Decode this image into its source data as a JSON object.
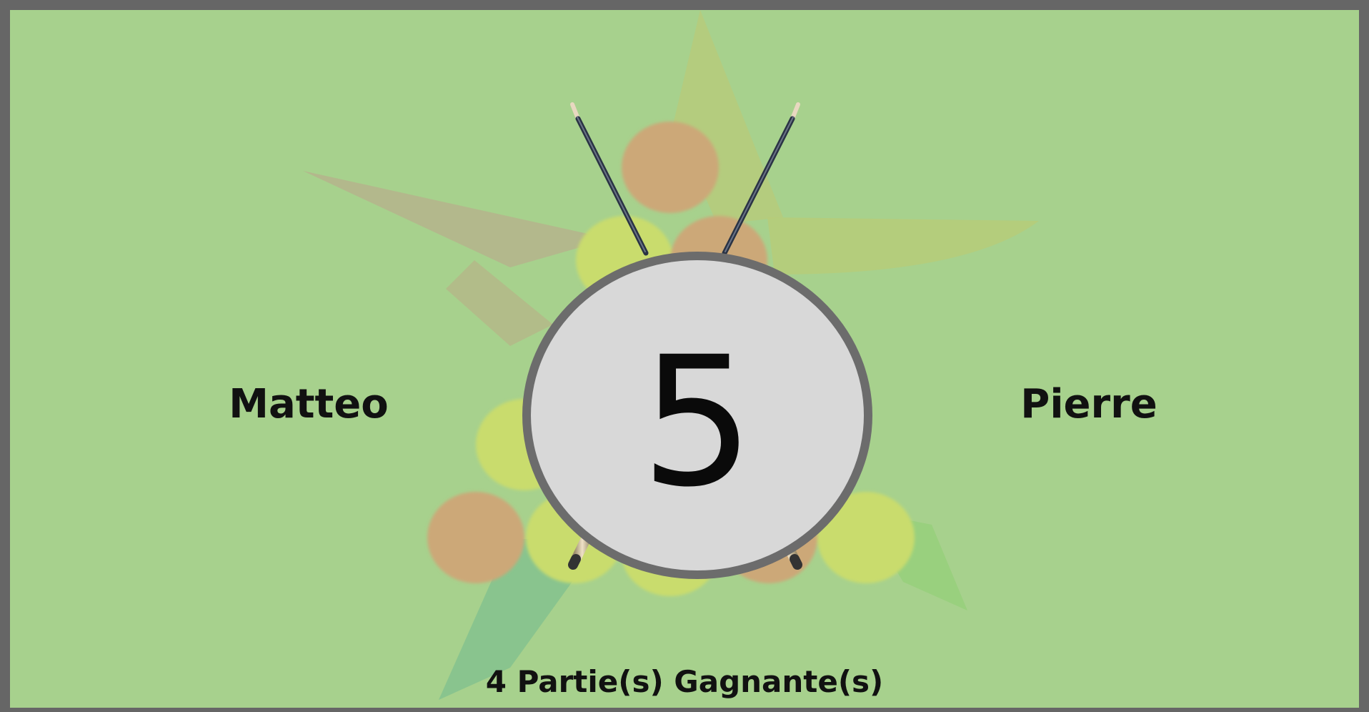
{
  "match": {
    "player_left": "Matteo",
    "player_right": "Pierre",
    "current_score": "5",
    "winning_games_caption": "4 Partie(s) Gagnante(s)"
  },
  "colors": {
    "background": "#a7d18d",
    "frame": "#666666",
    "score_circle_fill": "#d8d8d8",
    "score_circle_border": "#6c6c6c",
    "ball_orange": "#cca878",
    "ball_yellow": "#c9dc6d"
  },
  "icons": {
    "background": "star-billiard-balls-logo",
    "decoration": "crossed-cues-icon"
  }
}
